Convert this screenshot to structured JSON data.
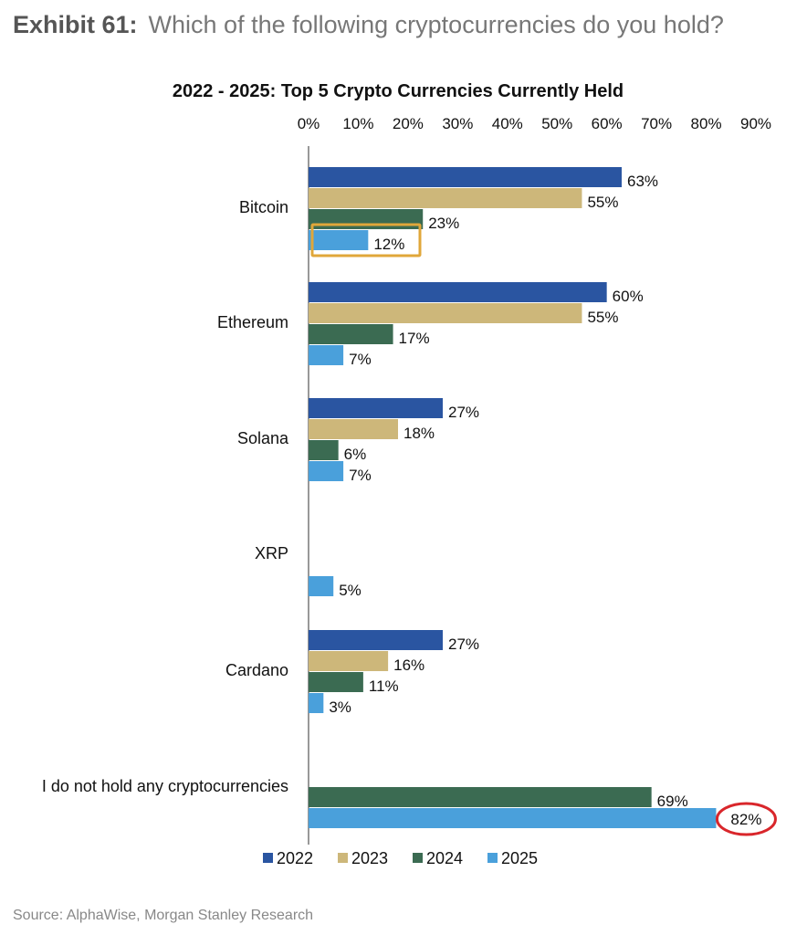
{
  "header": {
    "exhibit_label": "Exhibit 61:",
    "question": "Which of the following cryptocurrencies do you hold?"
  },
  "source": "Source: AlphaWise, Morgan Stanley Research",
  "chart_data": {
    "type": "bar",
    "orientation": "horizontal",
    "title": "2022 - 2025: Top 5 Crypto Currencies Currently Held",
    "xlim": [
      0,
      90
    ],
    "x_ticks": [
      "0%",
      "10%",
      "20%",
      "30%",
      "40%",
      "50%",
      "60%",
      "70%",
      "80%",
      "90%"
    ],
    "categories": [
      "Bitcoin",
      "Ethereum",
      "Solana",
      "XRP",
      "Cardano",
      "I do not hold any cryptocurrencies"
    ],
    "series": [
      {
        "name": "2022",
        "color": "#2a55a1",
        "values": [
          63,
          60,
          27,
          null,
          27,
          null
        ]
      },
      {
        "name": "2023",
        "color": "#cdb77a",
        "values": [
          55,
          55,
          18,
          null,
          16,
          null
        ]
      },
      {
        "name": "2024",
        "color": "#3b6b52",
        "values": [
          23,
          17,
          6,
          null,
          11,
          69
        ]
      },
      {
        "name": "2025",
        "color": "#4aa0db",
        "values": [
          12,
          7,
          7,
          5,
          3,
          82
        ]
      }
    ],
    "legend_position": "bottom",
    "highlights": [
      {
        "category": "Bitcoin",
        "series": "2025",
        "style": "gold-box",
        "color": "#e0a73a"
      },
      {
        "category": "I do not hold any cryptocurrencies",
        "series": "2025",
        "style": "red-circle",
        "color": "#d9262b"
      }
    ]
  }
}
